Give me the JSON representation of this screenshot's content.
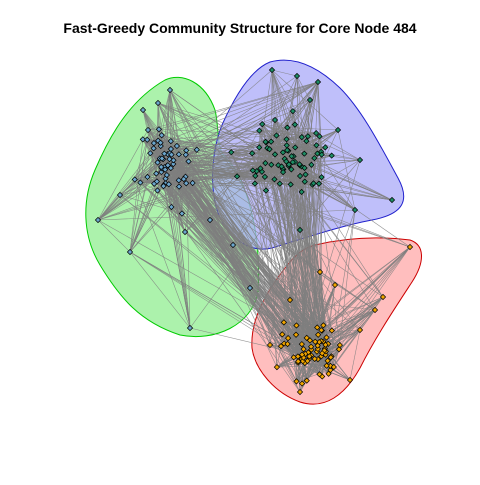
{
  "title": "Fast-Greedy Community Structure for Core Node 484",
  "colors": {
    "background": "#ffffff",
    "edge": "#7f7f7f",
    "node_stroke": "#000000"
  },
  "communities": [
    {
      "name": "green",
      "fill": "#90EE90",
      "stroke": "#00CC00",
      "node_color": "#6CA6CD",
      "node_count": 70
    },
    {
      "name": "blue",
      "fill": "#A9A9F8",
      "stroke": "#2020CC",
      "node_color": "#1E8C64",
      "node_count": 85
    },
    {
      "name": "red",
      "fill": "#FFA8A8",
      "stroke": "#CC0000",
      "node_color": "#F0A500",
      "node_count": 80
    }
  ]
}
